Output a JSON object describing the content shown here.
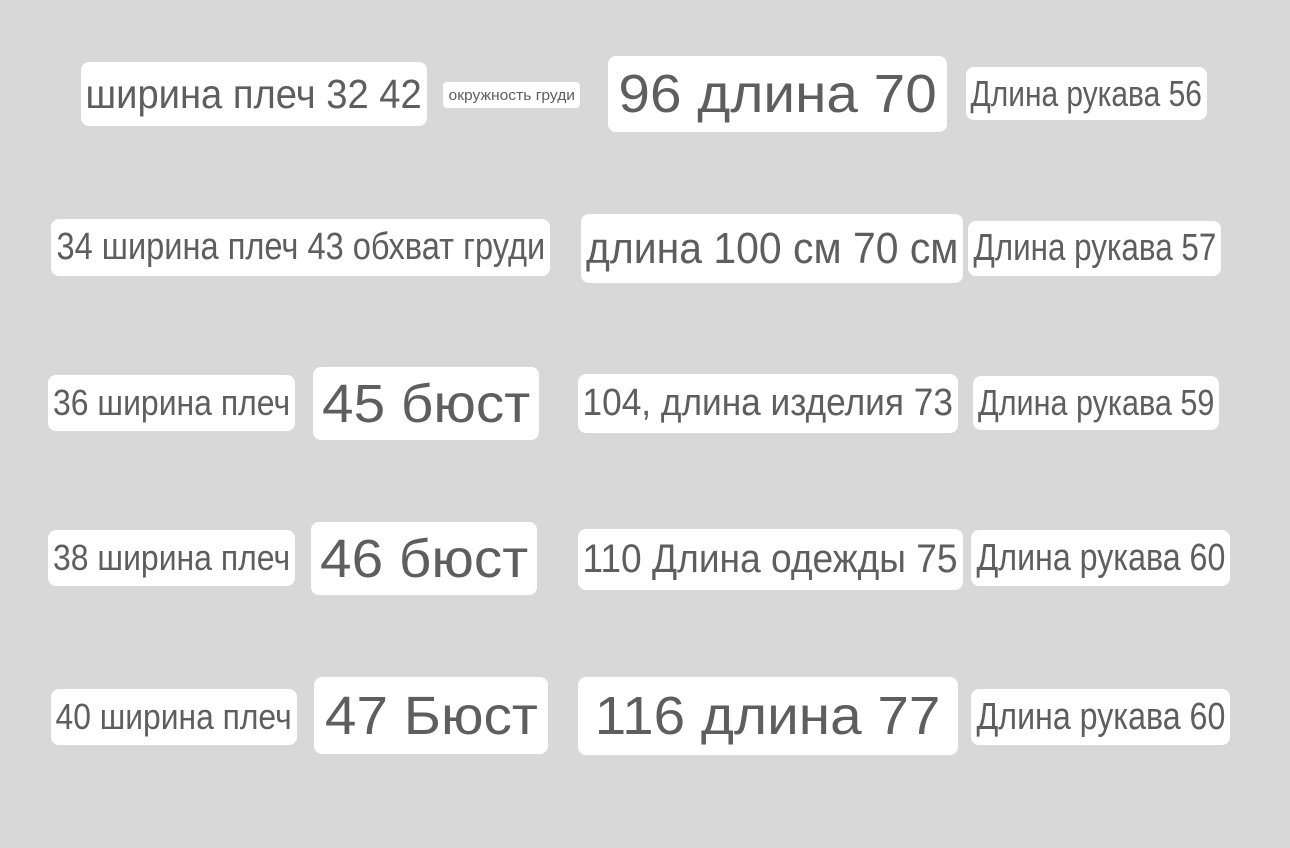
{
  "text_color": "#5e5e5e",
  "background_color": "#d8d8d8",
  "rows": [
    [
      "ширина плеч 32 42",
      "окружность груди",
      "96 длина 70",
      "Длина рукава 56"
    ],
    [
      "34 ширина плеч 43 обхват груди",
      "длина 100 см 70 см",
      "Длина рукава 57"
    ],
    [
      "36 ширина плеч",
      "45 бюст",
      "104, длина изделия 73",
      "Длина рукава 59"
    ],
    [
      "38 ширина плеч",
      "46 бюст",
      "110 Длина одежды 75",
      "Длина рукава 60"
    ],
    [
      "40 ширина плеч",
      "47 Бюст",
      "116 длина 77",
      "Длина рукава 60"
    ]
  ]
}
